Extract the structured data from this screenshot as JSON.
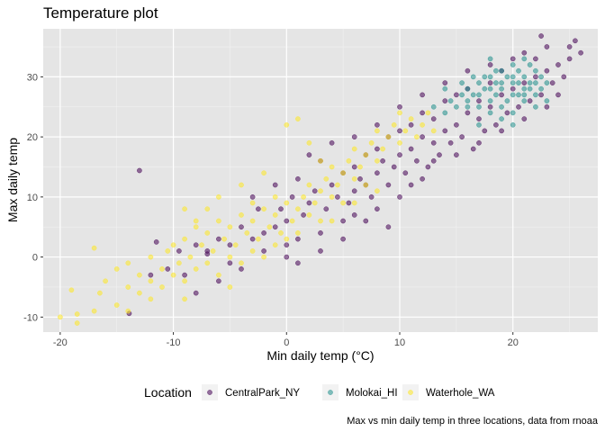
{
  "chart_data": {
    "type": "scatter",
    "title": "Temperature plot",
    "xlabel": "Min daily temp (°C)",
    "ylabel": "Max daily temp",
    "caption": "Max vs min daily temp in three locations, data from rnoaa",
    "xlim": [
      -21.5,
      27.5
    ],
    "ylim": [
      -12.5,
      38
    ],
    "x_ticks": [
      -20,
      -10,
      0,
      10,
      20
    ],
    "y_ticks": [
      -10,
      0,
      10,
      20,
      30
    ],
    "grid": true,
    "panel_background": "#e5e5e5",
    "legend": {
      "title": "Location",
      "position": "bottom"
    },
    "series": [
      {
        "name": "CentralPark_NY",
        "color": "#440154",
        "points": [
          [
            -13,
            14.4
          ],
          [
            -13.9,
            -9.4
          ],
          [
            -12,
            -3
          ],
          [
            -11.5,
            2.5
          ],
          [
            -10.5,
            -2
          ],
          [
            -9.5,
            1
          ],
          [
            -9,
            -3
          ],
          [
            -8,
            2
          ],
          [
            -7,
            0.5
          ],
          [
            -6,
            3
          ],
          [
            -5,
            -1
          ],
          [
            -4,
            5
          ],
          [
            -3,
            3
          ],
          [
            -2.5,
            8
          ],
          [
            -2,
            1
          ],
          [
            -1,
            5
          ],
          [
            -0.5,
            8
          ],
          [
            0,
            6
          ],
          [
            0,
            2
          ],
          [
            0.5,
            10
          ],
          [
            1,
            3
          ],
          [
            1,
            13
          ],
          [
            1.5,
            7
          ],
          [
            2,
            9
          ],
          [
            2.5,
            11
          ],
          [
            3,
            4
          ],
          [
            3,
            16
          ],
          [
            3.5,
            8
          ],
          [
            4,
            12
          ],
          [
            4.5,
            10
          ],
          [
            5,
            14
          ],
          [
            5,
            6
          ],
          [
            5.5,
            9
          ],
          [
            6,
            11
          ],
          [
            6,
            15
          ],
          [
            6.5,
            13
          ],
          [
            7,
            12
          ],
          [
            7,
            17
          ],
          [
            7.5,
            10
          ],
          [
            8,
            14
          ],
          [
            8,
            18
          ],
          [
            8.5,
            16
          ],
          [
            9,
            12
          ],
          [
            9,
            20
          ],
          [
            9.5,
            15
          ],
          [
            10,
            17
          ],
          [
            10,
            21
          ],
          [
            10.5,
            14
          ],
          [
            11,
            18
          ],
          [
            11,
            22
          ],
          [
            11.5,
            16
          ],
          [
            12,
            20
          ],
          [
            12,
            24
          ],
          [
            12.5,
            15
          ],
          [
            13,
            19
          ],
          [
            13,
            23
          ],
          [
            13.5,
            17
          ],
          [
            14,
            21
          ],
          [
            14,
            26
          ],
          [
            14.5,
            19
          ],
          [
            15,
            22
          ],
          [
            15,
            27
          ],
          [
            15.5,
            20
          ],
          [
            16,
            24
          ],
          [
            16,
            28
          ],
          [
            16.5,
            18
          ],
          [
            17,
            23
          ],
          [
            17,
            26
          ],
          [
            17.5,
            21
          ],
          [
            18,
            25
          ],
          [
            18,
            29
          ],
          [
            18.5,
            22
          ],
          [
            19,
            27
          ],
          [
            19,
            31
          ],
          [
            19.5,
            24
          ],
          [
            20,
            28
          ],
          [
            20,
            33
          ],
          [
            20.5,
            25
          ],
          [
            21,
            29
          ],
          [
            21,
            34
          ],
          [
            21.5,
            26
          ],
          [
            22,
            30
          ],
          [
            22,
            33
          ],
          [
            22.5,
            27
          ],
          [
            23,
            31
          ],
          [
            23,
            35
          ],
          [
            23.5,
            29
          ],
          [
            24,
            32
          ],
          [
            24.5,
            30
          ],
          [
            25,
            33
          ],
          [
            25.5,
            36
          ],
          [
            25,
            35
          ],
          [
            26,
            34
          ],
          [
            22.5,
            36.8
          ],
          [
            8,
            8
          ],
          [
            9,
            5
          ],
          [
            10,
            10
          ],
          [
            11,
            12
          ],
          [
            12,
            13
          ],
          [
            -4,
            -2
          ],
          [
            -6,
            -4
          ],
          [
            -8,
            -6
          ],
          [
            -3,
            10
          ],
          [
            -1,
            12
          ],
          [
            2,
            17
          ],
          [
            4,
            19
          ],
          [
            6,
            20
          ],
          [
            8,
            22
          ],
          [
            10,
            25
          ],
          [
            12,
            27
          ],
          [
            14,
            29
          ],
          [
            16,
            31
          ],
          [
            18,
            32
          ],
          [
            6,
            7
          ],
          [
            7,
            6
          ],
          [
            13,
            16
          ],
          [
            15,
            17
          ],
          [
            17,
            19
          ],
          [
            19,
            21
          ],
          [
            21,
            23
          ],
          [
            23,
            25
          ],
          [
            24,
            27
          ],
          [
            -7,
            1
          ],
          [
            -5,
            2
          ],
          [
            -2,
            4
          ],
          [
            0,
            0
          ],
          [
            1,
            -1
          ],
          [
            3,
            1
          ],
          [
            5,
            3
          ]
        ]
      },
      {
        "name": "Molokai_HI",
        "color": "#21908c",
        "points": [
          [
            14,
            24
          ],
          [
            14.5,
            26
          ],
          [
            15,
            25
          ],
          [
            15.5,
            27
          ],
          [
            16,
            26
          ],
          [
            16,
            28
          ],
          [
            16.5,
            27
          ],
          [
            17,
            25
          ],
          [
            17,
            29
          ],
          [
            17.5,
            28
          ],
          [
            18,
            26
          ],
          [
            18,
            30
          ],
          [
            18.5,
            27
          ],
          [
            19,
            28
          ],
          [
            19,
            31
          ],
          [
            19.5,
            26
          ],
          [
            20,
            29
          ],
          [
            20,
            32
          ],
          [
            20.5,
            27
          ],
          [
            21,
            28
          ],
          [
            21,
            30
          ],
          [
            21.5,
            29
          ],
          [
            22,
            27
          ],
          [
            22,
            31
          ],
          [
            22.5,
            28
          ],
          [
            23,
            29
          ],
          [
            23,
            26
          ],
          [
            18,
            24
          ],
          [
            19,
            25
          ],
          [
            20,
            24
          ],
          [
            21,
            26
          ],
          [
            22,
            25
          ],
          [
            17,
            22
          ],
          [
            19,
            23
          ],
          [
            20,
            22
          ],
          [
            16.5,
            30
          ],
          [
            18.5,
            31
          ],
          [
            20.5,
            31
          ],
          [
            21.5,
            32
          ],
          [
            15.5,
            29
          ],
          [
            17.5,
            30
          ],
          [
            19.5,
            30
          ],
          [
            22.5,
            30
          ],
          [
            18,
            28
          ],
          [
            20,
            27
          ],
          [
            21,
            27
          ],
          [
            19,
            29
          ],
          [
            20,
            30
          ],
          [
            18.5,
            29
          ],
          [
            17,
            27
          ],
          [
            22,
            29
          ],
          [
            20.5,
            29
          ],
          [
            21.5,
            28
          ],
          [
            16,
            25
          ],
          [
            13,
            25
          ],
          [
            14,
            28
          ],
          [
            21,
            33
          ],
          [
            18,
            33
          ]
        ]
      },
      {
        "name": "Waterhole_WA",
        "color": "#fde725",
        "points": [
          [
            -20,
            -10
          ],
          [
            -18.5,
            -11
          ],
          [
            -18.5,
            -9.5
          ],
          [
            -17,
            -9
          ],
          [
            -17,
            1.5
          ],
          [
            -16,
            -4
          ],
          [
            -15,
            -8
          ],
          [
            -15,
            -2
          ],
          [
            -14,
            -5
          ],
          [
            -14,
            -1
          ],
          [
            -13,
            -3
          ],
          [
            -13,
            -6
          ],
          [
            -12,
            -4
          ],
          [
            -12,
            0
          ],
          [
            -11,
            -2
          ],
          [
            -11,
            -5
          ],
          [
            -10.5,
            1
          ],
          [
            -10,
            -3
          ],
          [
            -10,
            2
          ],
          [
            -9.5,
            -1
          ],
          [
            -9,
            3
          ],
          [
            -9,
            -4
          ],
          [
            -8.5,
            0
          ],
          [
            -8,
            5
          ],
          [
            -8,
            -2
          ],
          [
            -7.5,
            2
          ],
          [
            -7,
            4
          ],
          [
            -7,
            -1
          ],
          [
            -6.5,
            1
          ],
          [
            -6,
            6
          ],
          [
            -6,
            -3
          ],
          [
            -5.5,
            3
          ],
          [
            -5,
            5
          ],
          [
            -5,
            0
          ],
          [
            -4.5,
            2
          ],
          [
            -4,
            7
          ],
          [
            -4,
            -1
          ],
          [
            -3.5,
            4
          ],
          [
            -3,
            6
          ],
          [
            -3,
            1
          ],
          [
            -2.5,
            3
          ],
          [
            -2,
            8
          ],
          [
            -2,
            0
          ],
          [
            -1.5,
            5
          ],
          [
            -1,
            7
          ],
          [
            -1,
            2
          ],
          [
            -0.5,
            4
          ],
          [
            0,
            9
          ],
          [
            0,
            3
          ],
          [
            0.5,
            6
          ],
          [
            1,
            8
          ],
          [
            1,
            4
          ],
          [
            1.5,
            10
          ],
          [
            2,
            7
          ],
          [
            2,
            12
          ],
          [
            2.5,
            9
          ],
          [
            3,
            11
          ],
          [
            3,
            6
          ],
          [
            3.5,
            13
          ],
          [
            4,
            10
          ],
          [
            4,
            15
          ],
          [
            4.5,
            12
          ],
          [
            5,
            14
          ],
          [
            5,
            9
          ],
          [
            5.5,
            16
          ],
          [
            6,
            13
          ],
          [
            6,
            18
          ],
          [
            6.5,
            15
          ],
          [
            7,
            17
          ],
          [
            7,
            12
          ],
          [
            7.5,
            19
          ],
          [
            8,
            16
          ],
          [
            8,
            21
          ],
          [
            8.5,
            18
          ],
          [
            9,
            20
          ],
          [
            9.5,
            22
          ],
          [
            10,
            19
          ],
          [
            10,
            24
          ],
          [
            10.5,
            21
          ],
          [
            11,
            23
          ],
          [
            11.5,
            20
          ],
          [
            12,
            22
          ],
          [
            12.5,
            24
          ],
          [
            13,
            21
          ],
          [
            -9,
            8
          ],
          [
            -4,
            12
          ],
          [
            -2,
            14
          ],
          [
            0,
            22
          ],
          [
            1,
            23
          ],
          [
            2,
            19
          ],
          [
            3,
            16
          ],
          [
            -1,
            10
          ],
          [
            -6,
            10
          ],
          [
            -16.5,
            -6
          ],
          [
            -19,
            -5.5
          ],
          [
            -12,
            -7
          ],
          [
            -14,
            -9
          ],
          [
            -9,
            -7
          ],
          [
            -5,
            -5
          ],
          [
            4,
            6
          ],
          [
            6,
            9
          ],
          [
            8,
            11
          ],
          [
            -7,
            8
          ],
          [
            -3,
            9
          ],
          [
            -8,
            6
          ]
        ]
      }
    ]
  }
}
